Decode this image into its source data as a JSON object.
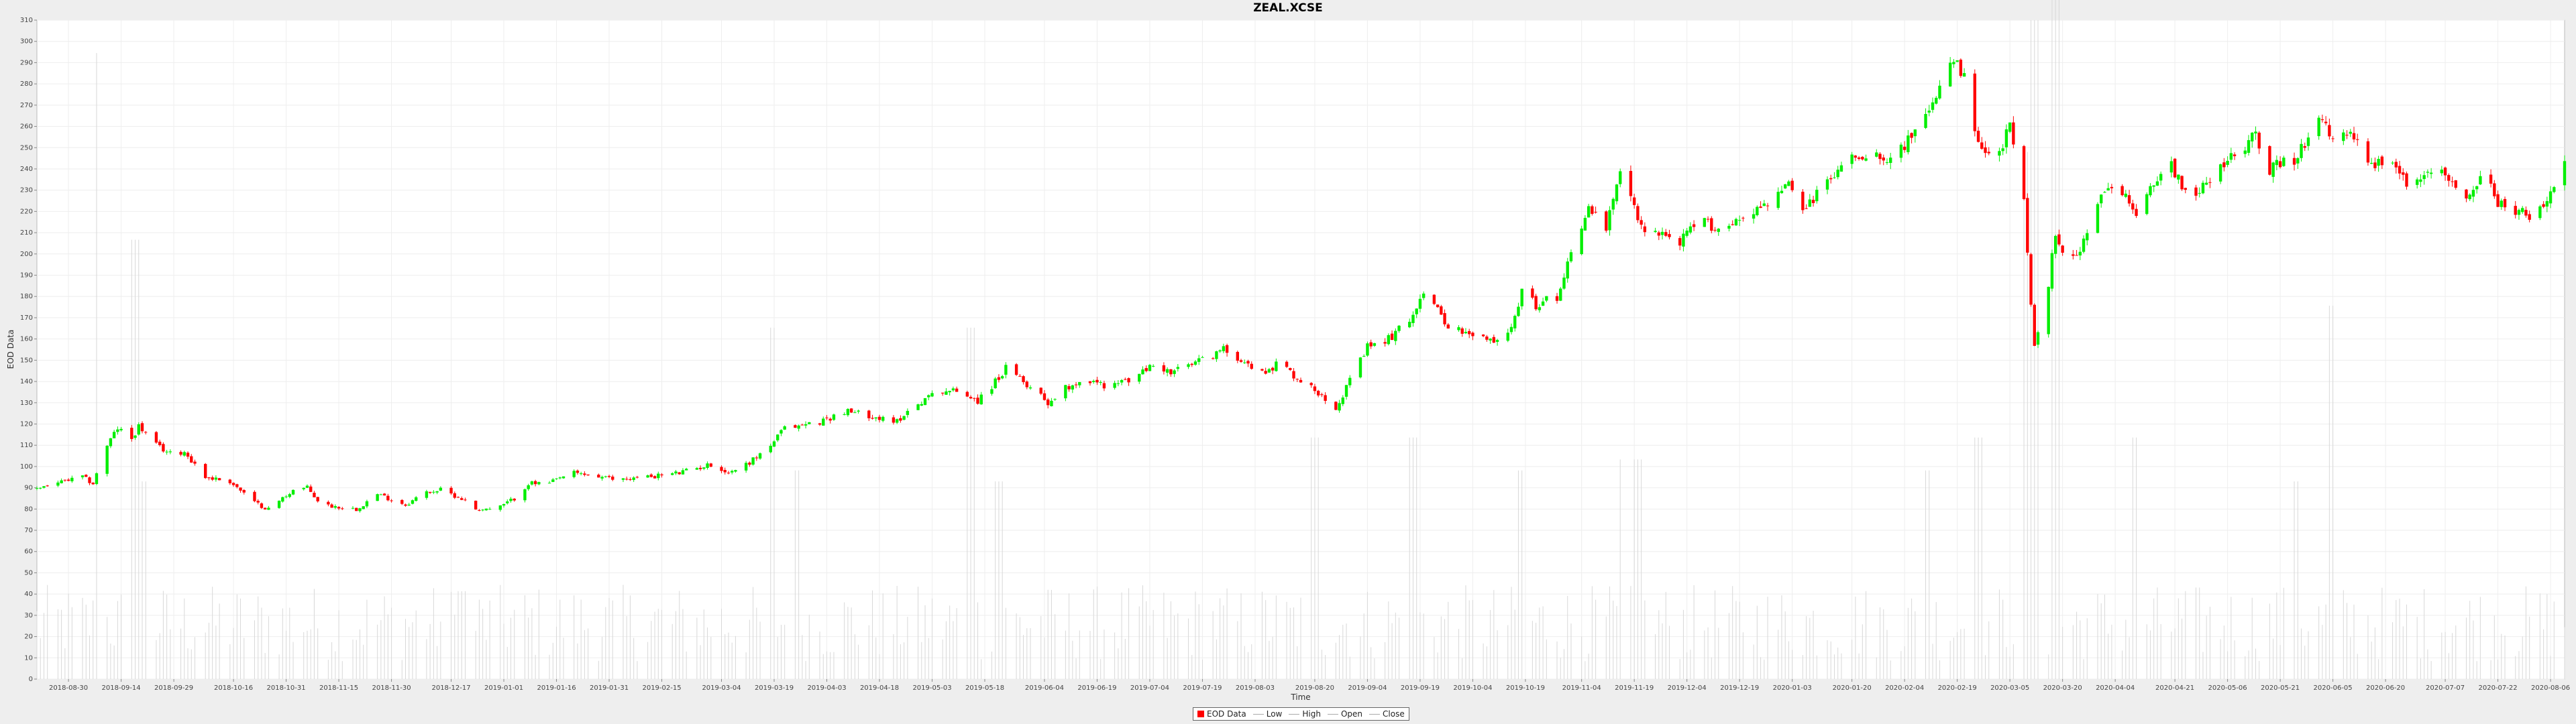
{
  "chart_data": {
    "type": "candlestick",
    "title": "ZEAL.XCSE",
    "xlabel": "Time",
    "ylabel": "EOD Data",
    "ylim": [
      0,
      310
    ],
    "yticks": [
      0,
      10,
      20,
      30,
      40,
      50,
      60,
      70,
      80,
      90,
      100,
      110,
      120,
      130,
      140,
      150,
      160,
      170,
      180,
      190,
      200,
      210,
      220,
      230,
      240,
      250,
      260,
      270,
      280,
      290,
      300,
      310
    ],
    "xlim": [
      "2018-08-21",
      "2020-08-10"
    ],
    "xticks": [
      "2018-08-30",
      "2018-09-14",
      "2018-09-29",
      "2018-10-16",
      "2018-10-31",
      "2018-11-15",
      "2018-11-30",
      "2018-12-17",
      "2019-01-01",
      "2019-01-16",
      "2019-01-31",
      "2019-02-15",
      "2019-03-04",
      "2019-03-19",
      "2019-04-03",
      "2019-04-18",
      "2019-05-03",
      "2019-05-18",
      "2019-06-04",
      "2019-06-19",
      "2019-07-04",
      "2019-07-19",
      "2019-08-03",
      "2019-08-20",
      "2019-09-04",
      "2019-09-19",
      "2019-10-04",
      "2019-10-19",
      "2019-11-04",
      "2019-11-19",
      "2019-12-04",
      "2019-12-19",
      "2020-01-03",
      "2020-01-20",
      "2020-02-04",
      "2020-02-19",
      "2020-03-05",
      "2020-03-20",
      "2020-04-04",
      "2020-04-21",
      "2020-05-06",
      "2020-05-21",
      "2020-06-05",
      "2020-06-20",
      "2020-07-07",
      "2020-07-22",
      "2020-08-06"
    ],
    "close_anchors": [
      [
        "2018-08-21",
        90
      ],
      [
        "2018-09-03",
        95
      ],
      [
        "2018-09-06",
        92
      ],
      [
        "2018-09-10",
        110
      ],
      [
        "2018-09-13",
        118
      ],
      [
        "2018-09-17",
        113
      ],
      [
        "2018-09-19",
        119
      ],
      [
        "2018-09-24",
        110
      ],
      [
        "2018-09-28",
        106
      ],
      [
        "2018-10-02",
        107
      ],
      [
        "2018-10-08",
        95
      ],
      [
        "2018-10-15",
        93
      ],
      [
        "2018-10-22",
        83
      ],
      [
        "2018-10-26",
        80
      ],
      [
        "2018-11-02",
        89
      ],
      [
        "2018-11-06",
        90
      ],
      [
        "2018-11-10",
        82
      ],
      [
        "2018-11-20",
        80
      ],
      [
        "2018-11-26",
        87
      ],
      [
        "2018-12-04",
        82
      ],
      [
        "2018-12-10",
        88
      ],
      [
        "2018-12-14",
        89
      ],
      [
        "2018-12-20",
        85
      ],
      [
        "2018-12-24",
        80
      ],
      [
        "2018-12-30",
        80
      ],
      [
        "2019-01-04",
        85
      ],
      [
        "2019-01-08",
        92
      ],
      [
        "2019-01-14",
        92
      ],
      [
        "2019-01-20",
        97
      ],
      [
        "2019-01-25",
        96
      ],
      [
        "2019-02-01",
        94
      ],
      [
        "2019-02-10",
        95
      ],
      [
        "2019-02-20",
        97
      ],
      [
        "2019-03-01",
        101
      ],
      [
        "2019-03-06",
        97
      ],
      [
        "2019-03-12",
        102
      ],
      [
        "2019-03-18",
        110
      ],
      [
        "2019-03-22",
        118
      ],
      [
        "2019-04-01",
        121
      ],
      [
        "2019-04-08",
        126
      ],
      [
        "2019-04-16",
        124
      ],
      [
        "2019-04-22",
        120
      ],
      [
        "2019-04-26",
        126
      ],
      [
        "2019-05-01",
        132
      ],
      [
        "2019-05-06",
        136
      ],
      [
        "2019-05-12",
        135
      ],
      [
        "2019-05-16",
        131
      ],
      [
        "2019-05-20",
        138
      ],
      [
        "2019-05-24",
        146
      ],
      [
        "2019-05-28",
        141
      ],
      [
        "2019-06-03",
        134
      ],
      [
        "2019-06-05",
        130
      ],
      [
        "2019-06-10",
        137
      ],
      [
        "2019-06-15",
        141
      ],
      [
        "2019-06-22",
        138
      ],
      [
        "2019-06-29",
        141
      ],
      [
        "2019-07-05",
        148
      ],
      [
        "2019-07-10",
        144
      ],
      [
        "2019-07-16",
        148
      ],
      [
        "2019-07-25",
        155
      ],
      [
        "2019-07-31",
        150
      ],
      [
        "2019-08-04",
        143
      ],
      [
        "2019-08-10",
        149
      ],
      [
        "2019-08-16",
        140
      ],
      [
        "2019-08-22",
        134
      ],
      [
        "2019-08-26",
        128
      ],
      [
        "2019-08-30",
        140
      ],
      [
        "2019-09-04",
        156
      ],
      [
        "2019-09-10",
        160
      ],
      [
        "2019-09-16",
        169
      ],
      [
        "2019-09-20",
        183
      ],
      [
        "2019-09-23",
        175
      ],
      [
        "2019-09-27",
        167
      ],
      [
        "2019-10-02",
        162
      ],
      [
        "2019-10-07",
        160
      ],
      [
        "2019-10-13",
        158
      ],
      [
        "2019-10-18",
        182
      ],
      [
        "2019-10-22",
        176
      ],
      [
        "2019-10-28",
        180
      ],
      [
        "2019-11-01",
        201
      ],
      [
        "2019-11-06",
        222
      ],
      [
        "2019-11-11",
        212
      ],
      [
        "2019-11-16",
        243
      ],
      [
        "2019-11-20",
        214
      ],
      [
        "2019-11-26",
        210
      ],
      [
        "2019-12-02",
        206
      ],
      [
        "2019-12-08",
        216
      ],
      [
        "2019-12-14",
        211
      ],
      [
        "2019-12-20",
        218
      ],
      [
        "2019-12-26",
        223
      ],
      [
        "2020-01-02",
        232
      ],
      [
        "2020-01-06",
        220
      ],
      [
        "2020-01-14",
        236
      ],
      [
        "2020-01-20",
        246
      ],
      [
        "2020-01-26",
        248
      ],
      [
        "2020-02-01",
        245
      ],
      [
        "2020-02-07",
        258
      ],
      [
        "2020-02-12",
        268
      ],
      [
        "2020-02-17",
        293
      ],
      [
        "2020-02-21",
        282
      ],
      [
        "2020-02-25",
        250
      ],
      [
        "2020-03-01",
        243
      ],
      [
        "2020-03-05",
        260
      ],
      [
        "2020-03-09",
        225
      ],
      [
        "2020-03-12",
        155
      ],
      [
        "2020-03-15",
        174
      ],
      [
        "2020-03-18",
        210
      ],
      [
        "2020-03-22",
        195
      ],
      [
        "2020-03-26",
        205
      ],
      [
        "2020-04-01",
        230
      ],
      [
        "2020-04-06",
        228
      ],
      [
        "2020-04-10",
        219
      ],
      [
        "2020-04-15",
        235
      ],
      [
        "2020-04-20",
        242
      ],
      [
        "2020-04-25",
        226
      ],
      [
        "2020-05-01",
        236
      ],
      [
        "2020-05-08",
        246
      ],
      [
        "2020-05-14",
        257
      ],
      [
        "2020-05-18",
        240
      ],
      [
        "2020-05-26",
        245
      ],
      [
        "2020-05-31",
        264
      ],
      [
        "2020-06-06",
        253
      ],
      [
        "2020-06-12",
        256
      ],
      [
        "2020-06-16",
        240
      ],
      [
        "2020-06-22",
        246
      ],
      [
        "2020-06-27",
        228
      ],
      [
        "2020-07-02",
        240
      ],
      [
        "2020-07-06",
        242
      ],
      [
        "2020-07-12",
        225
      ],
      [
        "2020-07-18",
        238
      ],
      [
        "2020-07-22",
        224
      ],
      [
        "2020-07-28",
        220
      ],
      [
        "2020-08-02",
        217
      ],
      [
        "2020-08-06",
        228
      ],
      [
        "2020-08-10",
        242
      ]
    ],
    "volume_scale": [
      0,
      300
    ],
    "volume_spikes": [
      [
        "2018-09-08",
        285
      ],
      [
        "2018-09-18",
        200
      ],
      [
        "2018-09-20",
        90
      ],
      [
        "2018-12-20",
        40
      ],
      [
        "2019-03-18",
        160
      ],
      [
        "2019-03-25",
        95
      ],
      [
        "2019-05-14",
        160
      ],
      [
        "2019-05-22",
        90
      ],
      [
        "2019-08-20",
        110
      ],
      [
        "2019-09-17",
        110
      ],
      [
        "2019-10-18",
        95
      ],
      [
        "2019-11-16",
        100
      ],
      [
        "2019-11-20",
        100
      ],
      [
        "2020-02-10",
        95
      ],
      [
        "2020-02-25",
        110
      ],
      [
        "2020-03-10",
        240
      ],
      [
        "2020-03-12",
        300
      ],
      [
        "2020-03-18",
        310
      ],
      [
        "2020-04-10",
        110
      ],
      [
        "2020-06-05",
        170
      ],
      [
        "2020-05-25",
        90
      ]
    ],
    "legend": [
      {
        "label": "EOD Data",
        "color": "#ff0000"
      },
      {
        "label": "Low",
        "color": "#aaaaaa"
      },
      {
        "label": "High",
        "color": "#aaaaaa"
      },
      {
        "label": "Open",
        "color": "#aaaaaa"
      },
      {
        "label": "Close",
        "color": "#aaaaaa"
      }
    ],
    "legend_position": "bottom",
    "up_color": "#00ee00",
    "down_color": "#ff0000",
    "grid": true
  }
}
